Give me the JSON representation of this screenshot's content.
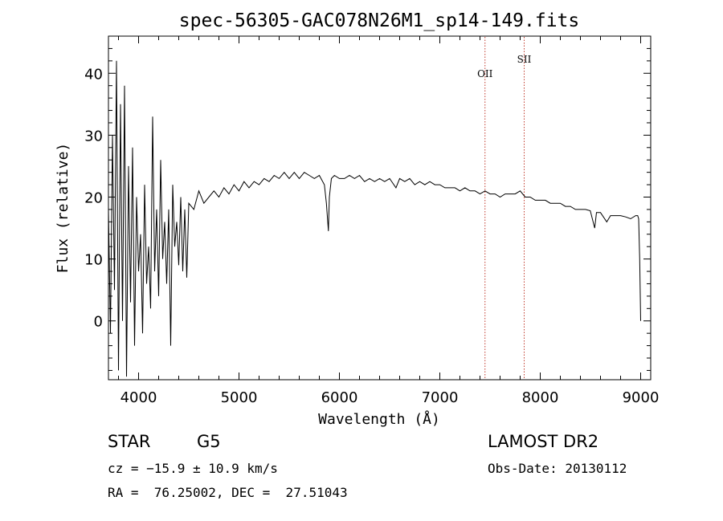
{
  "chart_data": {
    "type": "line",
    "title": "spec-56305-GAC078N26M1_sp14-149.fits",
    "xlabel": "Wavelength (Å)",
    "ylabel": "Flux (relative)",
    "xlim": [
      3700,
      9100
    ],
    "ylim": [
      -9.5,
      46
    ],
    "x_ticks": [
      4000,
      5000,
      6000,
      7000,
      8000,
      9000
    ],
    "x_tick_labels": [
      "4000",
      "5000",
      "6000",
      "7000",
      "8000",
      "9000"
    ],
    "y_ticks": [
      0,
      10,
      20,
      30,
      40
    ],
    "y_tick_labels": [
      "0",
      "10",
      "20",
      "30",
      "40"
    ],
    "grid": false,
    "line_color": "#000000",
    "marker_color": "#c0392b",
    "series": [
      {
        "x": [
          3700,
          3720,
          3740,
          3760,
          3780,
          3800,
          3820,
          3840,
          3860,
          3880,
          3900,
          3920,
          3940,
          3960,
          3980,
          4000,
          4020,
          4040,
          4060,
          4080,
          4100,
          4120,
          4140,
          4160,
          4180,
          4200,
          4220,
          4240,
          4260,
          4280,
          4300,
          4320,
          4340,
          4360,
          4380,
          4400,
          4420,
          4440,
          4460,
          4480,
          4500,
          4550,
          4600,
          4650,
          4700,
          4750,
          4800,
          4850,
          4900,
          4950,
          5000,
          5050,
          5100,
          5150,
          5200,
          5250,
          5300,
          5350,
          5400,
          5450,
          5500,
          5550,
          5600,
          5650,
          5700,
          5750,
          5800,
          5850,
          5870,
          5890,
          5900,
          5920,
          5950,
          6000,
          6050,
          6100,
          6150,
          6200,
          6250,
          6300,
          6350,
          6400,
          6450,
          6500,
          6563,
          6600,
          6650,
          6700,
          6750,
          6800,
          6850,
          6900,
          6950,
          7000,
          7050,
          7100,
          7150,
          7200,
          7250,
          7300,
          7350,
          7400,
          7450,
          7500,
          7550,
          7600,
          7650,
          7700,
          7750,
          7800,
          7850,
          7900,
          7950,
          8000,
          8050,
          8100,
          8150,
          8200,
          8250,
          8300,
          8350,
          8400,
          8450,
          8498,
          8542,
          8560,
          8600,
          8662,
          8700,
          8750,
          8800,
          8850,
          8900,
          8950,
          8970,
          8980,
          8990,
          9000
        ],
        "y": [
          18,
          -2,
          30,
          5,
          42,
          -8,
          35,
          0,
          38,
          -9,
          25,
          3,
          28,
          -4,
          20,
          8,
          14,
          -2,
          22,
          6,
          12,
          2,
          33,
          8,
          18,
          4,
          26,
          10,
          16,
          6,
          18,
          -4,
          22,
          12,
          16,
          9,
          20,
          8,
          18,
          7,
          19,
          18,
          21,
          19,
          20,
          21,
          20,
          21.5,
          20.5,
          22,
          21,
          22.5,
          21.5,
          22.5,
          22,
          23,
          22.5,
          23.5,
          23,
          24,
          23,
          24,
          23,
          24,
          23.5,
          23,
          23.5,
          22,
          19,
          14.5,
          20,
          23,
          23.5,
          23,
          23,
          23.5,
          23,
          23.5,
          22.5,
          23,
          22.5,
          23,
          22.5,
          23,
          21.5,
          23,
          22.5,
          23,
          22,
          22.5,
          22,
          22.5,
          22,
          22,
          21.5,
          21.5,
          21.5,
          21,
          21.5,
          21,
          21,
          20.5,
          21,
          20.5,
          20.5,
          20,
          20.5,
          20.5,
          20.5,
          21,
          20,
          20,
          19.5,
          19.5,
          19.5,
          19,
          19,
          19,
          18.5,
          18.5,
          18,
          18,
          18,
          17.8,
          15,
          17.5,
          17.5,
          16,
          17,
          17,
          17,
          16.8,
          16.5,
          17,
          17,
          16.5,
          10,
          0
        ]
      }
    ],
    "annotations": [
      {
        "label": "OII",
        "x": 7450
      },
      {
        "label": "SII",
        "x": 7840
      }
    ]
  },
  "info": {
    "class": "STAR",
    "subclass": "G5",
    "cz": "cz = −15.9 ± 10.9 km/s",
    "coords": "RA =  76.25002, DEC =  27.51043",
    "survey": "LAMOST DR2",
    "obs_date": "Obs-Date: 20130112"
  }
}
